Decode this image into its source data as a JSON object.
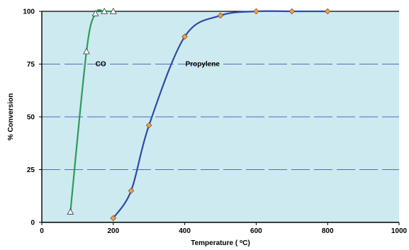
{
  "chart_data": {
    "type": "line",
    "title": "",
    "xlabel": "Temperature (°C)",
    "xlabel_parts": {
      "before": "Temperature ( ",
      "sup": "o",
      "after": "C)"
    },
    "ylabel": "% Conversion",
    "xlim": [
      0,
      1000
    ],
    "ylim": [
      0,
      100
    ],
    "xticks": [
      0,
      200,
      400,
      600,
      800,
      1000
    ],
    "yticks": [
      0,
      25,
      50,
      75,
      100
    ],
    "xtick_labels": [
      "0",
      "200",
      "400",
      "600",
      "800",
      "1000"
    ],
    "ytick_labels": [
      "0",
      "25",
      "50",
      "75",
      "100"
    ],
    "grid": {
      "horizontal": true,
      "style": "dashed"
    },
    "background_color": "#cdeaf0",
    "series": [
      {
        "name": "CO",
        "color": "#2e9a5c",
        "marker": "triangle",
        "marker_fill": "#ffffff",
        "x": [
          80,
          125,
          150,
          175,
          200
        ],
        "y": [
          5,
          81,
          99,
          100,
          100
        ],
        "label_at": [
          165,
          74
        ]
      },
      {
        "name": "Propylene",
        "color": "#2f4aa8",
        "marker": "diamond",
        "marker_fill": "#f0a050",
        "x": [
          200,
          250,
          300,
          400,
          500,
          600,
          700,
          800
        ],
        "y": [
          2,
          15,
          46,
          88,
          98,
          100,
          100,
          100
        ],
        "label_at": [
          450,
          74
        ]
      }
    ]
  }
}
